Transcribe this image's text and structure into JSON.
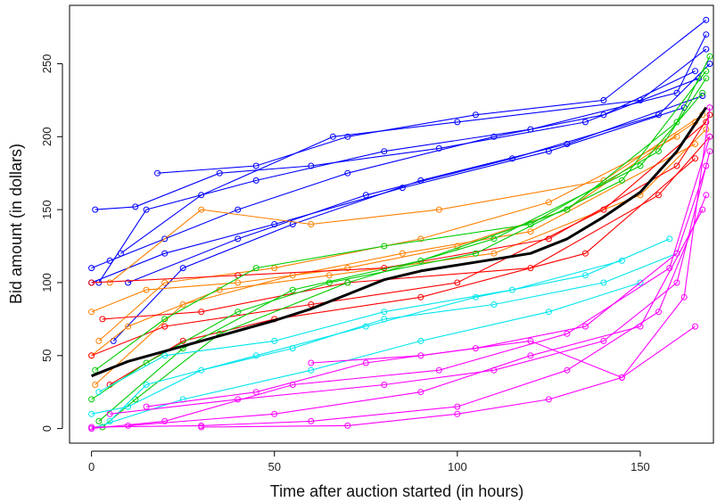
{
  "chart_data": {
    "type": "line",
    "title": "",
    "xlabel": "Time after auction started (in hours)",
    "ylabel": "Bid amount (in dollars)",
    "xlim": [
      -6,
      170
    ],
    "ylim": [
      -10,
      290
    ],
    "xticks": [
      0,
      50,
      100,
      150
    ],
    "yticks": [
      0,
      50,
      100,
      150,
      200,
      250
    ],
    "grid": false,
    "legend": "none",
    "marker": "open-circle",
    "series": [
      {
        "color": "#0000ff",
        "points": [
          [
            0,
            110
          ],
          [
            5,
            115
          ],
          [
            20,
            130
          ],
          [
            40,
            150
          ],
          [
            70,
            175
          ],
          [
            110,
            200
          ],
          [
            140,
            215
          ],
          [
            165,
            245
          ]
        ]
      },
      {
        "color": "#0000ff",
        "points": [
          [
            2,
            100
          ],
          [
            15,
            150
          ],
          [
            45,
            170
          ],
          [
            80,
            190
          ],
          [
            120,
            205
          ],
          [
            160,
            230
          ],
          [
            168,
            270
          ]
        ]
      },
      {
        "color": "#0000ff",
        "points": [
          [
            8,
            120
          ],
          [
            30,
            160
          ],
          [
            66,
            200
          ],
          [
            100,
            210
          ],
          [
            150,
            225
          ],
          [
            168,
            260
          ]
        ]
      },
      {
        "color": "#0000ff",
        "points": [
          [
            1,
            150
          ],
          [
            12,
            152
          ],
          [
            35,
            175
          ],
          [
            60,
            180
          ],
          [
            95,
            192
          ],
          [
            135,
            210
          ],
          [
            166,
            240
          ]
        ]
      },
      {
        "color": "#0000ff",
        "points": [
          [
            6,
            60
          ],
          [
            25,
            110
          ],
          [
            55,
            140
          ],
          [
            90,
            170
          ],
          [
            130,
            195
          ],
          [
            167,
            228
          ]
        ]
      },
      {
        "color": "#0000ff",
        "points": [
          [
            10,
            100
          ],
          [
            40,
            130
          ],
          [
            75,
            160
          ],
          [
            115,
            185
          ],
          [
            155,
            215
          ],
          [
            169,
            250
          ]
        ]
      },
      {
        "color": "#0000ff",
        "points": [
          [
            0,
            100
          ],
          [
            20,
            120
          ],
          [
            50,
            140
          ],
          [
            85,
            165
          ],
          [
            125,
            190
          ],
          [
            162,
            220
          ]
        ]
      },
      {
        "color": "#0000ff",
        "points": [
          [
            18,
            175
          ],
          [
            45,
            180
          ],
          [
            70,
            200
          ],
          [
            105,
            215
          ],
          [
            140,
            225
          ],
          [
            168,
            280
          ]
        ]
      },
      {
        "color": "#ff8000",
        "points": [
          [
            0,
            80
          ],
          [
            15,
            95
          ],
          [
            40,
            100
          ],
          [
            70,
            110
          ],
          [
            100,
            125
          ],
          [
            130,
            150
          ],
          [
            165,
            210
          ]
        ]
      },
      {
        "color": "#ff8000",
        "points": [
          [
            2,
            60
          ],
          [
            20,
            100
          ],
          [
            50,
            110
          ],
          [
            90,
            130
          ],
          [
            125,
            155
          ],
          [
            160,
            200
          ]
        ]
      },
      {
        "color": "#ff8000",
        "points": [
          [
            5,
            100
          ],
          [
            30,
            150
          ],
          [
            60,
            140
          ],
          [
            95,
            150
          ],
          [
            140,
            170
          ],
          [
            167,
            215
          ]
        ]
      },
      {
        "color": "#ff8000",
        "points": [
          [
            1,
            30
          ],
          [
            25,
            85
          ],
          [
            55,
            105
          ],
          [
            85,
            120
          ],
          [
            120,
            135
          ],
          [
            165,
            195
          ]
        ]
      },
      {
        "color": "#ff8000",
        "points": [
          [
            0,
            50
          ],
          [
            10,
            70
          ],
          [
            35,
            95
          ],
          [
            65,
            105
          ],
          [
            110,
            120
          ],
          [
            150,
            160
          ],
          [
            168,
            205
          ]
        ]
      },
      {
        "color": "#ff0000",
        "points": [
          [
            0,
            50
          ],
          [
            20,
            70
          ],
          [
            60,
            85
          ],
          [
            100,
            100
          ],
          [
            140,
            150
          ],
          [
            168,
            210
          ]
        ]
      },
      {
        "color": "#ff0000",
        "points": [
          [
            3,
            75
          ],
          [
            30,
            80
          ],
          [
            70,
            100
          ],
          [
            120,
            110
          ],
          [
            155,
            160
          ],
          [
            169,
            200
          ]
        ]
      },
      {
        "color": "#ff0000",
        "points": [
          [
            0,
            100
          ],
          [
            40,
            105
          ],
          [
            80,
            110
          ],
          [
            125,
            130
          ],
          [
            160,
            180
          ],
          [
            169,
            215
          ]
        ]
      },
      {
        "color": "#ff0000",
        "points": [
          [
            5,
            30
          ],
          [
            25,
            60
          ],
          [
            50,
            75
          ],
          [
            90,
            90
          ],
          [
            135,
            120
          ],
          [
            165,
            185
          ]
        ]
      },
      {
        "color": "#00cc00",
        "points": [
          [
            0,
            20
          ],
          [
            15,
            45
          ],
          [
            40,
            80
          ],
          [
            65,
            100
          ],
          [
            105,
            120
          ],
          [
            145,
            170
          ],
          [
            168,
            245
          ]
        ]
      },
      {
        "color": "#00cc00",
        "points": [
          [
            2,
            5
          ],
          [
            25,
            55
          ],
          [
            55,
            95
          ],
          [
            90,
            115
          ],
          [
            130,
            150
          ],
          [
            160,
            210
          ],
          [
            169,
            255
          ]
        ]
      },
      {
        "color": "#00cc00",
        "points": [
          [
            1,
            40
          ],
          [
            20,
            75
          ],
          [
            45,
            110
          ],
          [
            80,
            125
          ],
          [
            120,
            140
          ],
          [
            155,
            190
          ],
          [
            168,
            240
          ]
        ]
      },
      {
        "color": "#00cc00",
        "points": [
          [
            3,
            1
          ],
          [
            12,
            20
          ],
          [
            35,
            65
          ],
          [
            70,
            100
          ],
          [
            110,
            130
          ],
          [
            150,
            180
          ],
          [
            167,
            230
          ]
        ]
      },
      {
        "color": "#00e5ee",
        "points": [
          [
            0,
            10
          ],
          [
            10,
            15
          ],
          [
            30,
            40
          ],
          [
            55,
            55
          ],
          [
            80,
            75
          ],
          [
            110,
            85
          ],
          [
            140,
            100
          ],
          [
            160,
            120
          ]
        ]
      },
      {
        "color": "#00e5ee",
        "points": [
          [
            2,
            25
          ],
          [
            20,
            50
          ],
          [
            50,
            60
          ],
          [
            80,
            80
          ],
          [
            115,
            95
          ],
          [
            145,
            115
          ]
        ]
      },
      {
        "color": "#00e5ee",
        "points": [
          [
            5,
            5
          ],
          [
            15,
            30
          ],
          [
            45,
            50
          ],
          [
            75,
            70
          ],
          [
            105,
            90
          ],
          [
            135,
            105
          ],
          [
            158,
            130
          ]
        ]
      },
      {
        "color": "#00e5ee",
        "points": [
          [
            0,
            0
          ],
          [
            25,
            20
          ],
          [
            60,
            40
          ],
          [
            90,
            60
          ],
          [
            125,
            80
          ],
          [
            150,
            100
          ]
        ]
      },
      {
        "color": "#ff00ff",
        "points": [
          [
            0,
            1
          ],
          [
            30,
            2
          ],
          [
            60,
            5
          ],
          [
            100,
            15
          ],
          [
            130,
            40
          ],
          [
            155,
            80
          ],
          [
            168,
            160
          ]
        ]
      },
      {
        "color": "#ff00ff",
        "points": [
          [
            5,
            10
          ],
          [
            40,
            20
          ],
          [
            80,
            30
          ],
          [
            110,
            40
          ],
          [
            140,
            60
          ],
          [
            160,
            100
          ],
          [
            169,
            190
          ]
        ]
      },
      {
        "color": "#ff00ff",
        "points": [
          [
            10,
            2
          ],
          [
            50,
            10
          ],
          [
            90,
            25
          ],
          [
            120,
            50
          ],
          [
            150,
            70
          ],
          [
            167,
            150
          ]
        ]
      },
      {
        "color": "#ff00ff",
        "points": [
          [
            0,
            0
          ],
          [
            20,
            5
          ],
          [
            55,
            30
          ],
          [
            95,
            40
          ],
          [
            130,
            65
          ],
          [
            158,
            110
          ],
          [
            169,
            200
          ]
        ]
      },
      {
        "color": "#ff00ff",
        "points": [
          [
            15,
            15
          ],
          [
            45,
            25
          ],
          [
            75,
            45
          ],
          [
            105,
            55
          ],
          [
            135,
            70
          ],
          [
            160,
            120
          ],
          [
            168,
            180
          ]
        ]
      },
      {
        "color": "#ff00ff",
        "points": [
          [
            30,
            1
          ],
          [
            70,
            2
          ],
          [
            100,
            10
          ],
          [
            125,
            20
          ],
          [
            145,
            35
          ],
          [
            162,
            90
          ],
          [
            169,
            220
          ]
        ]
      },
      {
        "color": "#ff00ff",
        "points": [
          [
            60,
            45
          ],
          [
            90,
            50
          ],
          [
            120,
            60
          ],
          [
            145,
            35
          ],
          [
            165,
            70
          ]
        ]
      }
    ],
    "trend": {
      "color": "#000000",
      "x": [
        0,
        10,
        20,
        30,
        40,
        50,
        60,
        70,
        80,
        90,
        100,
        110,
        120,
        130,
        140,
        150,
        160,
        168
      ],
      "y": [
        36,
        46,
        53,
        60,
        67,
        74,
        82,
        92,
        102,
        108,
        112,
        116,
        120,
        130,
        145,
        162,
        190,
        220
      ]
    }
  }
}
